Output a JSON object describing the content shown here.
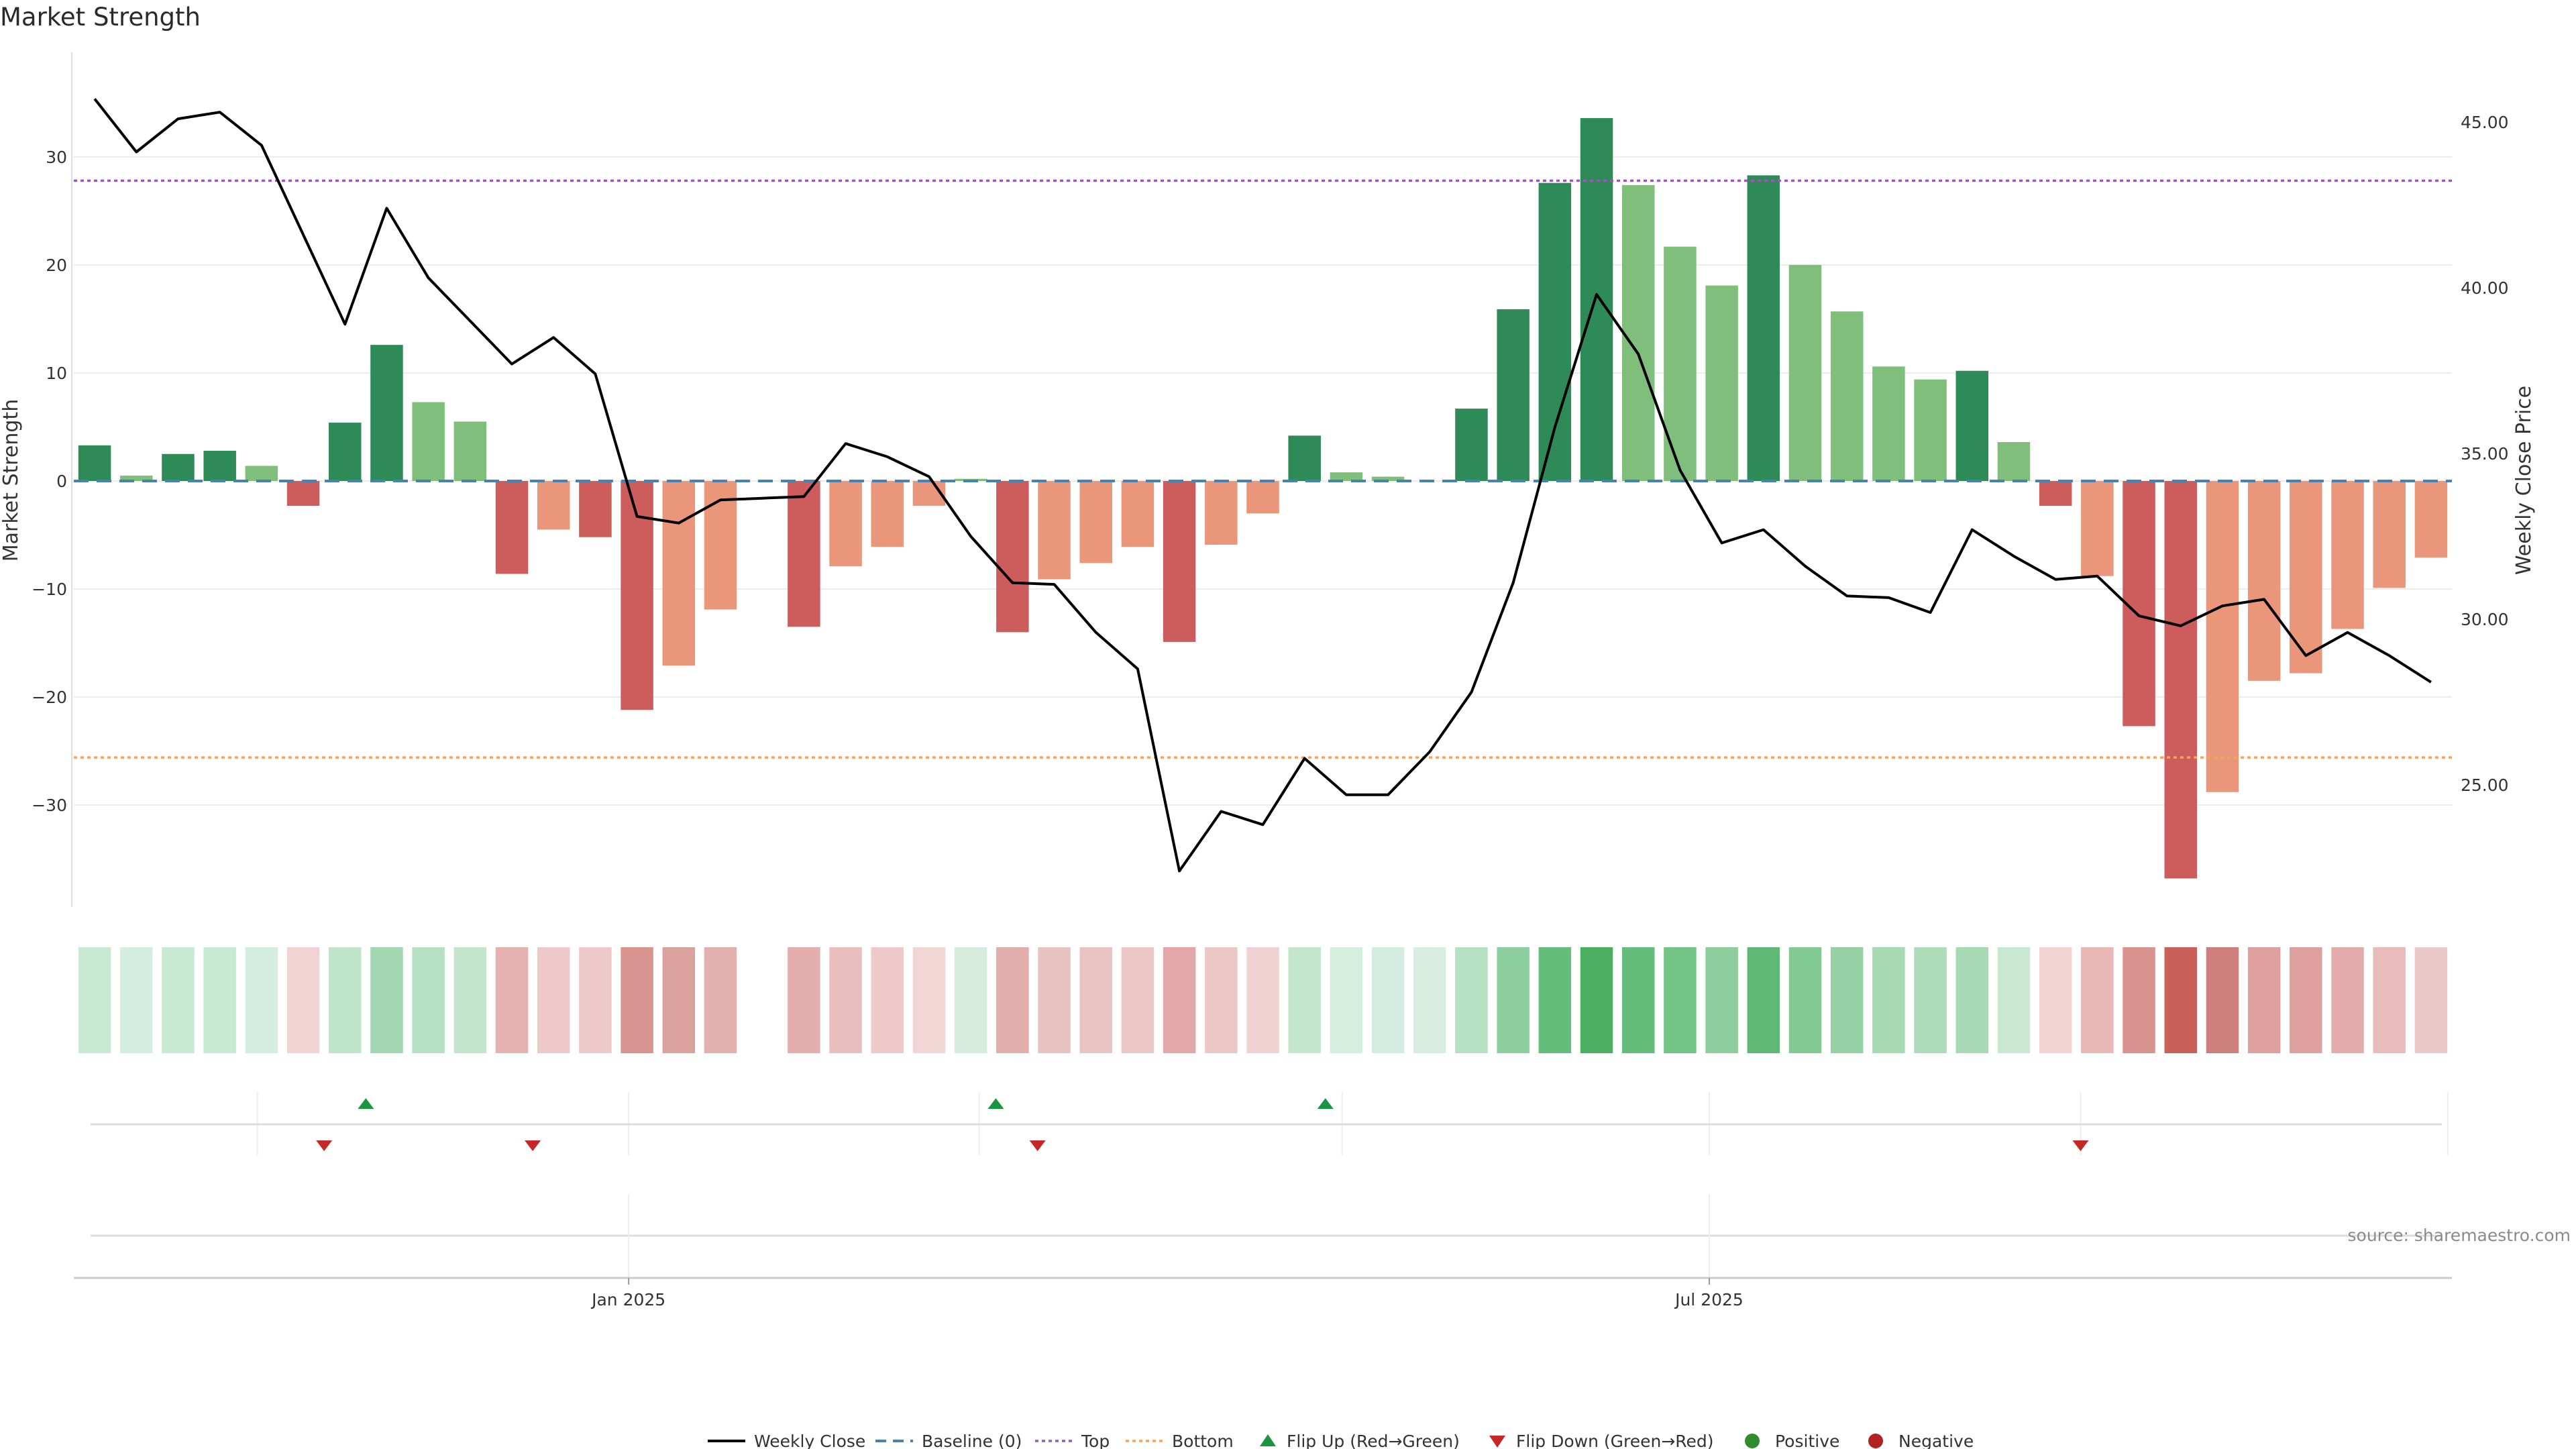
{
  "chart_data": {
    "type": "bar",
    "title": "Market Strength",
    "ylabel_left": "Market Strength",
    "ylabel_right": "Weekly Close Price",
    "source": "source: sharemaestro.com",
    "ylim_left": [
      -40,
      38
    ],
    "ylim_right": [
      21.2,
      48.0
    ],
    "left_ticks": [
      30,
      20,
      10,
      0,
      -10,
      -20,
      -30
    ],
    "left_tick_labels": [
      "30",
      "20",
      "10",
      "0",
      "−10",
      "−20",
      "−30"
    ],
    "right_ticks": [
      45,
      40,
      35,
      30,
      25
    ],
    "right_tick_labels": [
      "45.00",
      "40.00",
      "35.00",
      "30.00",
      "25.00"
    ],
    "x_date_labels": [
      {
        "label": "Jan 2025",
        "index": 12.8
      },
      {
        "label": "Jul 2025",
        "index": 38.7
      }
    ],
    "x_minor_divisions": [
      3.9,
      12.8,
      21.2,
      29.9,
      38.7,
      47.6,
      56.4
    ],
    "reference_lines": {
      "top": 27.8,
      "bottom": -25.6,
      "baseline": 0
    },
    "strength": [
      3.3,
      0.5,
      2.5,
      2.8,
      1.4,
      -2.3,
      5.4,
      12.6,
      7.3,
      5.5,
      -8.6,
      -4.5,
      -5.2,
      -21.2,
      -17.1,
      -11.9,
      0,
      -13.5,
      -7.9,
      -6.1,
      -2.3,
      0.2,
      -14.0,
      -9.1,
      -7.6,
      -6.1,
      -14.9,
      -5.9,
      -3.0,
      4.2,
      0.8,
      0.4,
      0,
      6.7,
      15.9,
      27.6,
      33.6,
      27.4,
      21.7,
      18.1,
      28.3,
      20.0,
      15.7,
      10.6,
      9.4,
      10.2,
      3.6,
      -2.3,
      -8.8,
      -22.7,
      -36.8,
      -28.8,
      -18.5,
      -17.8,
      -13.7,
      -9.9,
      -7.1
    ],
    "strength_shade": [
      "dark",
      "light",
      "dark",
      "dark",
      "light",
      "dark",
      "dark",
      "dark",
      "light",
      "light",
      "dark",
      "light",
      "dark",
      "dark",
      "light",
      "light",
      "none",
      "dark",
      "light",
      "light",
      "light",
      "light",
      "dark",
      "light",
      "light",
      "light",
      "dark",
      "light",
      "light",
      "dark",
      "light",
      "light",
      "none",
      "dark",
      "dark",
      "dark",
      "dark",
      "light",
      "light",
      "light",
      "dark",
      "light",
      "light",
      "light",
      "light",
      "dark",
      "light",
      "dark",
      "light",
      "dark",
      "dark",
      "light",
      "light",
      "light",
      "light",
      "light",
      "light"
    ],
    "weekly_close": [
      45.7,
      44.1,
      45.1,
      45.3,
      44.3,
      41.6,
      38.9,
      42.4,
      40.3,
      39.0,
      37.7,
      38.5,
      37.4,
      33.1,
      32.9,
      33.6,
      33.65,
      33.7,
      35.3,
      34.9,
      34.3,
      32.5,
      31.1,
      31.05,
      29.6,
      28.5,
      22.4,
      24.2,
      23.8,
      25.8,
      24.7,
      24.7,
      26.0,
      27.8,
      31.1,
      35.8,
      39.8,
      38.0,
      34.5,
      32.3,
      32.7,
      31.6,
      30.7,
      30.65,
      30.2,
      32.7,
      31.9,
      31.2,
      31.3,
      30.1,
      29.8,
      30.4,
      30.6,
      28.9,
      29.6,
      28.9,
      28.1
    ],
    "heat_strip": [
      "#c9ead2",
      "#d3ede0",
      "#c9ead2",
      "#c9ead2",
      "#d3ede0",
      "#f2d3d3",
      "#bfe4c9",
      "#a2d6b0",
      "#b7e0c2",
      "#c2e5cc",
      "#e6b2b0",
      "#edcac9",
      "#edcac9",
      "#d8958f",
      "#daa19d",
      "#e2b1ad",
      "none",
      "#e5aeae",
      "#e9bfbe",
      "#edc9c9",
      "#f2d6d6",
      "#d5ecdc",
      "#e2aeab",
      "#e8c2c0",
      "#e9c4c2",
      "#ebc7c6",
      "#e2a7a6",
      "#ebc7c6",
      "#f1d2d2",
      "#c4e6cd",
      "#d5eedd",
      "#d3ede0",
      "#d6ede0",
      "#b6e0c2",
      "#8cce9e",
      "#65bd7b",
      "#4aaf60",
      "#65bd7b",
      "#73c387",
      "#8dcd9c",
      "#5fb874",
      "#82c993",
      "#95d1a5",
      "#a7d9b3",
      "#aedcb9",
      "#a8d9b5",
      "#c9e8d1",
      "#f2d3d3",
      "#e8b7b6",
      "#d9938e",
      "#c9605a",
      "#cf7f7b",
      "#dea09f",
      "#de9f9f",
      "#e3acab",
      "#e8bcbb",
      "#ecc9c9"
    ],
    "flip_up": [
      6.5,
      21.6,
      29.5
    ],
    "flip_down": [
      5.5,
      10.5,
      22.6,
      47.6
    ],
    "legend": [
      "Weekly Close",
      "Baseline (0)",
      "Top",
      "Bottom",
      "Flip Up (Red→Green)",
      "Flip Down (Green→Red)",
      "Positive",
      "Negative"
    ],
    "colors": {
      "pos_dark": "#2e8b57",
      "pos_light": "#7fbf7b",
      "neg_dark": "#cd5c5c",
      "neg_light": "#e9967a",
      "line": "#000000",
      "baseline": "#4682b4",
      "top": "#9b59b6",
      "bottom": "#f4a460",
      "flip_up": "#1a9641",
      "flip_down": "#c62828",
      "positive_dot": "#2e8b2e",
      "negative_dot": "#b22222"
    }
  }
}
